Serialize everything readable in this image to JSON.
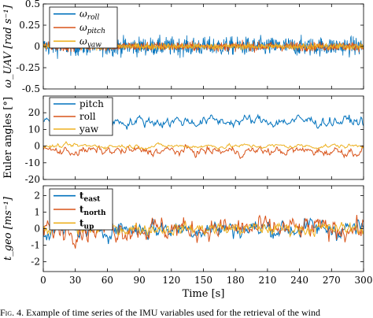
{
  "chart_data": [
    {
      "type": "line",
      "ylabel": "ω_UAV [rad s⁻¹]",
      "ylim": [
        -0.5,
        0.5
      ],
      "yticks": [
        "0.5",
        "0.25",
        "0",
        "-0.25",
        "-0.5"
      ],
      "xlim": [
        0,
        300
      ],
      "grid": false,
      "legend_position": "top-left",
      "series": [
        {
          "name": "ω_roll",
          "color": "#0072BD",
          "amplitude": 0.14,
          "mean": 0.0
        },
        {
          "name": "ω_pitch",
          "color": "#D95319",
          "amplitude": 0.07,
          "mean": 0.0
        },
        {
          "name": "ω_yaw",
          "color": "#EDB120",
          "amplitude": 0.05,
          "mean": 0.0
        }
      ]
    },
    {
      "type": "line",
      "ylabel": "Euler angles [°]",
      "ylim": [
        -20,
        30
      ],
      "yticks": [
        "20",
        "10",
        "0",
        "-10",
        "-20"
      ],
      "xlim": [
        0,
        300
      ],
      "grid": false,
      "legend_position": "top-left",
      "series": [
        {
          "name": "pitch",
          "color": "#0072BD",
          "mean": 15,
          "amplitude": 5
        },
        {
          "name": "roll",
          "color": "#D95319",
          "mean": -3,
          "amplitude": 4
        },
        {
          "name": "yaw",
          "color": "#EDB120",
          "mean": 0,
          "amplitude": 2
        }
      ]
    },
    {
      "type": "line",
      "ylabel": "t_geo [ms⁻¹]",
      "ylim": [
        -2.6,
        2.6
      ],
      "yticks": [
        "2",
        "1",
        "0",
        "-1",
        "-2"
      ],
      "xlabel": "Time [s]",
      "xlim": [
        0,
        300
      ],
      "xticks": [
        "0",
        "30",
        "60",
        "90",
        "120",
        "150",
        "180",
        "210",
        "240",
        "270",
        "300"
      ],
      "grid": false,
      "legend_position": "top-left",
      "series": [
        {
          "name": "t_east",
          "color": "#0072BD",
          "mean": 0,
          "amplitude": 0.8
        },
        {
          "name": "t_north",
          "color": "#D95319",
          "mean": 0,
          "amplitude": 0.9
        },
        {
          "name": "t_up",
          "color": "#EDB120",
          "mean": 0,
          "amplitude": 0.5
        }
      ]
    }
  ],
  "caption": {
    "label": "Fig. 4.",
    "text": "Example of time series of the IMU variables used for the retrieval of the wind"
  }
}
